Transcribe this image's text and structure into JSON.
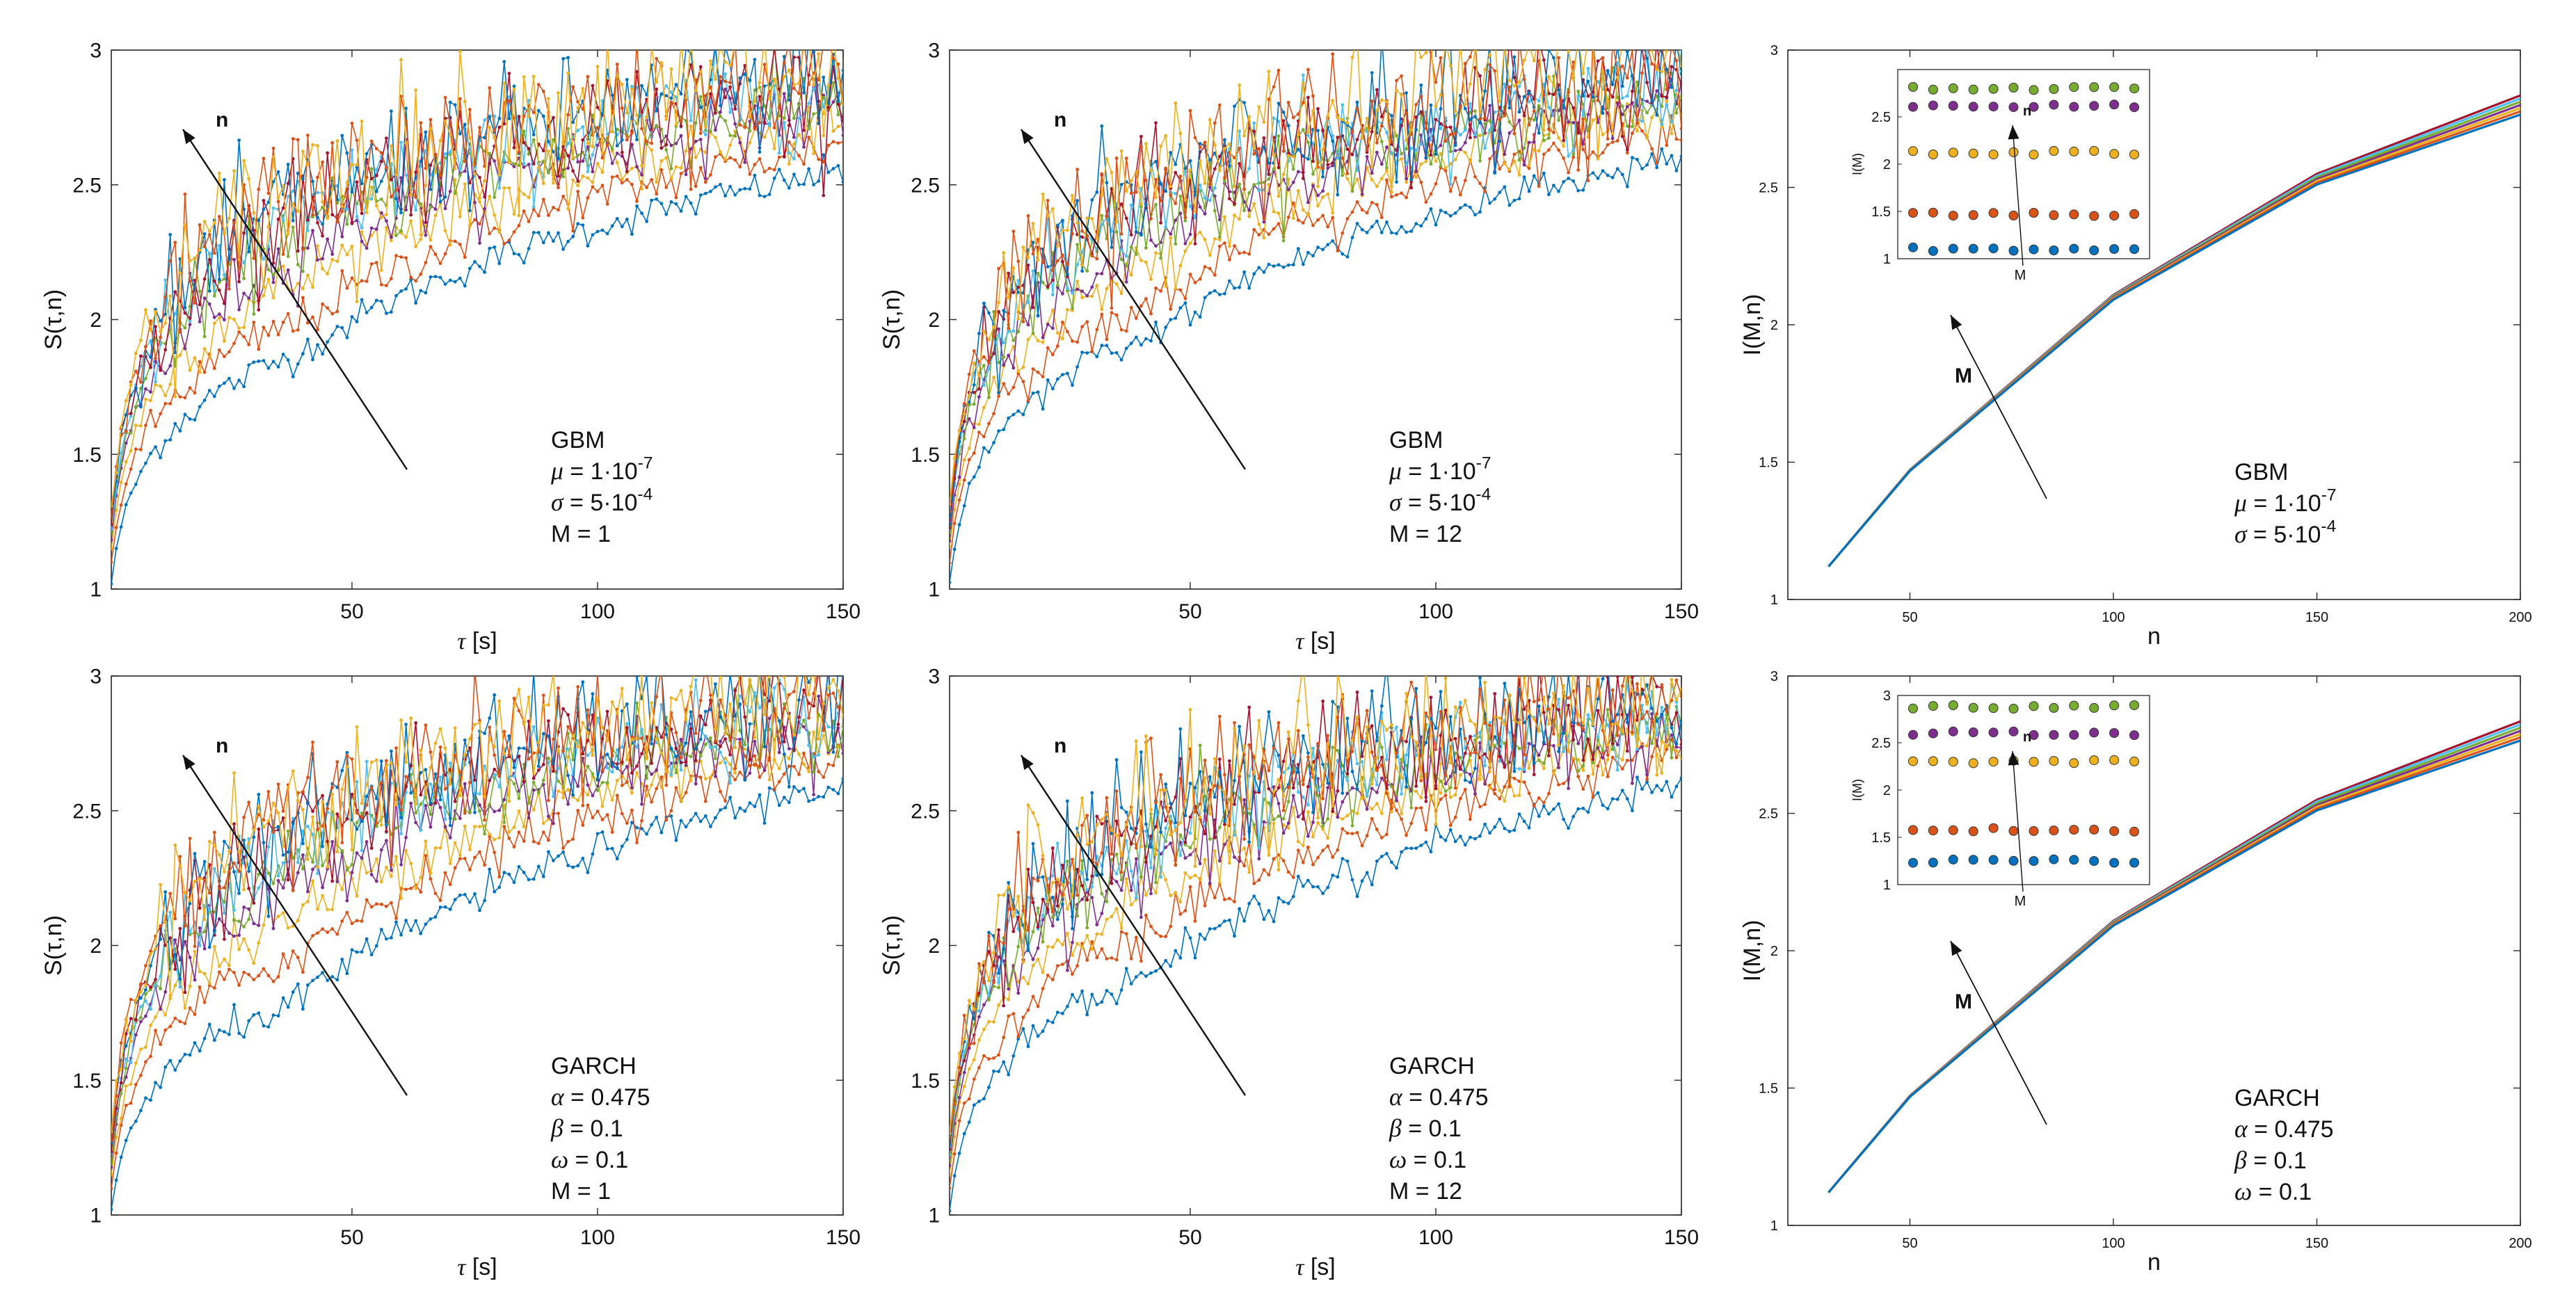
{
  "colors": [
    "#0072BD",
    "#D95319",
    "#EDB120",
    "#7E2F8E",
    "#77AC30",
    "#4DBEEE",
    "#A2142F"
  ],
  "chart_data": [
    {
      "id": "gbm-m1",
      "type": "line",
      "model": "GBM",
      "xlabel_sym": "τ",
      "xlabel_unit": " [s]",
      "ylabel": "S(τ,n)",
      "xlim": [
        1,
        150
      ],
      "ylim": [
        1,
        3
      ],
      "xticks": [
        50,
        100,
        150
      ],
      "yticks": [
        1,
        1.5,
        2,
        2.5,
        3
      ],
      "arrow_label": "n",
      "params": [
        {
          "sym": "μ",
          "text": " = 1·10",
          "sup": "-7"
        },
        {
          "sym": "σ",
          "text": " = 5·10",
          "sup": "-4"
        },
        {
          "sym": "",
          "text": "M = 1",
          "sup": ""
        }
      ],
      "series_desc": {
        "n_series": 10,
        "start_values": [
          1.02,
          1.1,
          1.15,
          1.18,
          1.2,
          1.22,
          1.24,
          1.26,
          1.28,
          1.3
        ],
        "end_values": [
          2.55,
          2.65,
          2.72,
          2.78,
          2.82,
          2.85,
          2.88,
          2.9,
          2.92,
          2.94
        ],
        "mid_values_tau40": [
          1.88,
          2.0,
          2.15,
          2.25,
          2.32,
          2.38,
          2.42,
          2.45,
          2.48,
          2.5
        ]
      }
    },
    {
      "id": "gbm-m12",
      "type": "line",
      "model": "GBM",
      "xlabel_sym": "τ",
      "xlabel_unit": " [s]",
      "ylabel": "S(τ,n)",
      "xlim": [
        1,
        150
      ],
      "ylim": [
        1,
        3
      ],
      "xticks": [
        50,
        100,
        150
      ],
      "yticks": [
        1,
        1.5,
        2,
        2.5,
        3
      ],
      "arrow_label": "n",
      "params": [
        {
          "sym": "μ",
          "text": " = 1·10",
          "sup": "-7"
        },
        {
          "sym": "σ",
          "text": " = 5·10",
          "sup": "-4"
        },
        {
          "sym": "",
          "text": "M = 12",
          "sup": ""
        }
      ],
      "series_desc": {
        "n_series": 10,
        "start_values": [
          1.02,
          1.1,
          1.15,
          1.18,
          1.2,
          1.22,
          1.24,
          1.26,
          1.28,
          1.3
        ],
        "end_values": [
          2.6,
          2.7,
          2.76,
          2.8,
          2.84,
          2.87,
          2.9,
          2.92,
          2.94,
          2.96
        ],
        "mid_values_tau40": [
          1.92,
          2.05,
          2.18,
          2.28,
          2.35,
          2.4,
          2.44,
          2.47,
          2.5,
          2.52
        ]
      }
    },
    {
      "id": "gbm-info",
      "type": "line",
      "model": "GBM",
      "xlabel": "n",
      "ylabel": "I(M,n)",
      "xlim": [
        20,
        200
      ],
      "ylim": [
        1,
        3
      ],
      "xticks": [
        50,
        100,
        150,
        200
      ],
      "yticks": [
        1,
        1.5,
        2,
        2.5,
        3
      ],
      "arrow_label": "M",
      "x": [
        30,
        50,
        100,
        150,
        200
      ],
      "y": [
        1.12,
        1.47,
        2.1,
        2.53,
        2.8
      ],
      "end_spread": 0.035,
      "params": [
        {
          "sym": "μ",
          "text": " = 1·10",
          "sup": "-7"
        },
        {
          "sym": "σ",
          "text": " = 5·10",
          "sup": "-4"
        }
      ],
      "inset": {
        "type": "scatter",
        "ylabel": "I(M)",
        "xlabel": "M",
        "arrow_label": "n",
        "ylim": [
          1,
          3
        ],
        "yticks": [
          1,
          1.5,
          2,
          2.5
        ],
        "levels": [
          1.1,
          1.47,
          2.12,
          2.62,
          2.8
        ],
        "points_per_level": 12
      }
    },
    {
      "id": "garch-m1",
      "type": "line",
      "model": "GARCH",
      "xlabel_sym": "τ",
      "xlabel_unit": " [s]",
      "ylabel": "S(τ,n)",
      "xlim": [
        1,
        150
      ],
      "ylim": [
        1,
        3
      ],
      "xticks": [
        50,
        100,
        150
      ],
      "yticks": [
        1,
        1.5,
        2,
        2.5,
        3
      ],
      "arrow_label": "n",
      "params": [
        {
          "sym": "α",
          "text": " = 0.475",
          "sup": ""
        },
        {
          "sym": "β",
          "text": " = 0.1",
          "sup": ""
        },
        {
          "sym": "ω",
          "text": " = 0.1",
          "sup": ""
        },
        {
          "sym": "",
          "text": "M = 1",
          "sup": ""
        }
      ],
      "series_desc": {
        "n_series": 10,
        "start_values": [
          1.02,
          1.1,
          1.15,
          1.18,
          1.2,
          1.22,
          1.24,
          1.26,
          1.28,
          1.3
        ],
        "end_values": [
          2.6,
          2.7,
          2.76,
          2.8,
          2.84,
          2.88,
          2.9,
          2.92,
          2.94,
          2.96
        ],
        "mid_values_tau40": [
          1.8,
          1.98,
          2.12,
          2.25,
          2.33,
          2.38,
          2.43,
          2.46,
          2.49,
          2.52
        ]
      }
    },
    {
      "id": "garch-m12",
      "type": "line",
      "model": "GARCH",
      "xlabel_sym": "τ",
      "xlabel_unit": " [s]",
      "ylabel": "S(τ,n)",
      "xlim": [
        1,
        150
      ],
      "ylim": [
        1,
        3
      ],
      "xticks": [
        50,
        100,
        150
      ],
      "yticks": [
        1,
        1.5,
        2,
        2.5,
        3
      ],
      "arrow_label": "n",
      "params": [
        {
          "sym": "α",
          "text": " = 0.475",
          "sup": ""
        },
        {
          "sym": "β",
          "text": " = 0.1",
          "sup": ""
        },
        {
          "sym": "ω",
          "text": " = 0.1",
          "sup": ""
        },
        {
          "sym": "",
          "text": "M = 12",
          "sup": ""
        }
      ],
      "series_desc": {
        "n_series": 10,
        "start_values": [
          1.02,
          1.1,
          1.15,
          1.18,
          1.2,
          1.22,
          1.24,
          1.26,
          1.28,
          1.3
        ],
        "end_values": [
          2.6,
          2.7,
          2.76,
          2.8,
          2.84,
          2.88,
          2.9,
          2.92,
          2.94,
          2.96
        ],
        "mid_values_tau40": [
          1.88,
          2.02,
          2.16,
          2.27,
          2.35,
          2.4,
          2.45,
          2.48,
          2.5,
          2.53
        ]
      }
    },
    {
      "id": "garch-info",
      "type": "line",
      "model": "GARCH",
      "xlabel": "n",
      "ylabel": "I(M,n)",
      "xlim": [
        20,
        200
      ],
      "ylim": [
        1,
        3
      ],
      "xticks": [
        50,
        100,
        150,
        200
      ],
      "yticks": [
        1,
        1.5,
        2,
        2.5,
        3
      ],
      "arrow_label": "M",
      "x": [
        30,
        50,
        100,
        150,
        200
      ],
      "y": [
        1.12,
        1.47,
        2.1,
        2.53,
        2.8
      ],
      "end_spread": 0.035,
      "params": [
        {
          "sym": "α",
          "text": " = 0.475",
          "sup": ""
        },
        {
          "sym": "β",
          "text": " = 0.1",
          "sup": ""
        },
        {
          "sym": "ω",
          "text": " = 0.1",
          "sup": ""
        }
      ],
      "inset": {
        "type": "scatter",
        "ylabel": "I(M)",
        "xlabel": "M",
        "arrow_label": "n",
        "ylim": [
          1,
          3
        ],
        "yticks": [
          1,
          1.5,
          2,
          2.5,
          3
        ],
        "levels": [
          1.25,
          1.58,
          2.3,
          2.6,
          2.88
        ],
        "points_per_level": 12
      }
    }
  ]
}
